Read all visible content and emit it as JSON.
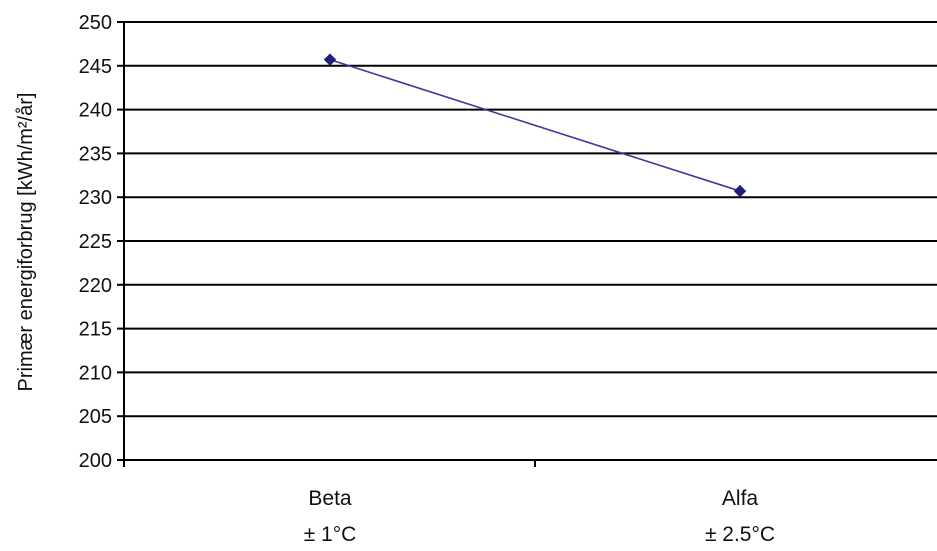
{
  "chart_data": {
    "type": "line",
    "title": "",
    "xlabel": "",
    "ylabel": "Primær energiforbrug [kWh/m²/år]",
    "categories": [
      {
        "name": "Beta",
        "sub": "± 1°C"
      },
      {
        "name": "Alfa",
        "sub": "± 2.5°C"
      }
    ],
    "series": [
      {
        "values": [
          245.7,
          230.7
        ]
      }
    ],
    "ylim": [
      200,
      250
    ],
    "yticks": [
      200,
      205,
      210,
      215,
      220,
      225,
      230,
      235,
      240,
      245,
      250
    ],
    "grid": true,
    "legend": "none",
    "colors": {
      "series": "#3a3a9a",
      "grid": "#000000",
      "axis": "#000000"
    }
  }
}
